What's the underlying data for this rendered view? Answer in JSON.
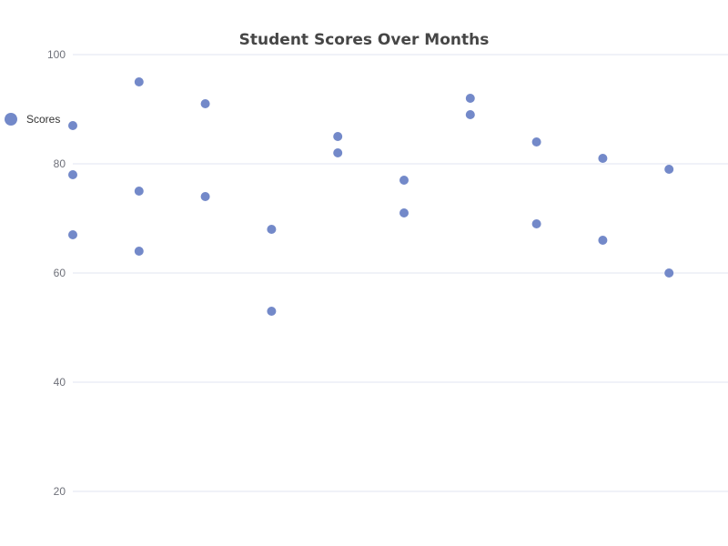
{
  "chart_data": {
    "type": "scatter",
    "title": "Student Scores Over Months",
    "xlabel": "",
    "ylabel": "",
    "ylim": [
      20,
      100
    ],
    "y_ticks": [
      20,
      40,
      60,
      80,
      100
    ],
    "x_categories_count": 10,
    "grid": true,
    "legend_position": "left",
    "series": [
      {
        "name": "Scores",
        "color": "#7389c9",
        "points": [
          {
            "x": 1,
            "y": 87
          },
          {
            "x": 1,
            "y": 78
          },
          {
            "x": 1,
            "y": 67
          },
          {
            "x": 2,
            "y": 95
          },
          {
            "x": 2,
            "y": 75
          },
          {
            "x": 2,
            "y": 64
          },
          {
            "x": 3,
            "y": 91
          },
          {
            "x": 3,
            "y": 74
          },
          {
            "x": 4,
            "y": 68
          },
          {
            "x": 4,
            "y": 53
          },
          {
            "x": 5,
            "y": 85
          },
          {
            "x": 5,
            "y": 82
          },
          {
            "x": 6,
            "y": 77
          },
          {
            "x": 6,
            "y": 71
          },
          {
            "x": 7,
            "y": 92
          },
          {
            "x": 7,
            "y": 89
          },
          {
            "x": 8,
            "y": 84
          },
          {
            "x": 8,
            "y": 69
          },
          {
            "x": 9,
            "y": 81
          },
          {
            "x": 9,
            "y": 66
          },
          {
            "x": 10,
            "y": 79
          },
          {
            "x": 10,
            "y": 60
          }
        ]
      }
    ]
  }
}
